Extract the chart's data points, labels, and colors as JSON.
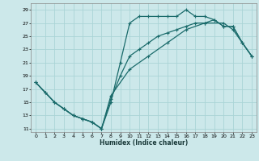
{
  "xlabel": "Humidex (Indice chaleur)",
  "bg_color": "#cce8ea",
  "grid_color": "#aad4d6",
  "line_color": "#1a6b6b",
  "xlim": [
    -0.5,
    23.5
  ],
  "ylim": [
    10.5,
    30
  ],
  "xticks": [
    0,
    1,
    2,
    3,
    4,
    5,
    6,
    7,
    8,
    9,
    10,
    11,
    12,
    13,
    14,
    15,
    16,
    17,
    18,
    19,
    20,
    21,
    22,
    23
  ],
  "yticks": [
    11,
    13,
    15,
    17,
    19,
    21,
    23,
    25,
    27,
    29
  ],
  "line1_x": [
    0,
    1,
    2,
    3,
    4,
    5,
    6,
    7,
    8,
    9,
    10,
    11,
    12,
    13,
    14,
    15,
    16,
    17,
    18,
    19,
    20,
    21,
    22,
    23
  ],
  "line1_y": [
    18,
    16.5,
    15,
    14,
    13,
    12.5,
    12,
    11,
    15,
    21,
    27,
    28,
    28,
    28,
    28,
    28,
    29,
    28,
    28,
    27.5,
    26.5,
    26.5,
    24,
    22
  ],
  "line2_x": [
    0,
    2,
    3,
    4,
    5,
    6,
    7,
    8,
    10,
    12,
    14,
    16,
    18,
    20,
    21,
    22,
    23
  ],
  "line2_y": [
    18,
    15,
    14,
    13,
    12.5,
    12,
    11,
    16,
    20,
    22,
    24,
    26,
    27,
    27,
    26,
    24,
    22
  ],
  "line3_x": [
    0,
    1,
    2,
    3,
    4,
    5,
    6,
    7,
    8,
    9,
    10,
    11,
    12,
    13,
    14,
    15,
    16,
    17,
    18,
    19,
    20,
    21,
    22,
    23
  ],
  "line3_y": [
    18,
    16.5,
    15,
    14,
    13,
    12.5,
    12,
    11,
    15.5,
    19,
    22,
    23,
    24,
    25,
    25.5,
    26,
    26.5,
    27,
    27,
    27.5,
    26.5,
    26.5,
    24,
    22
  ]
}
